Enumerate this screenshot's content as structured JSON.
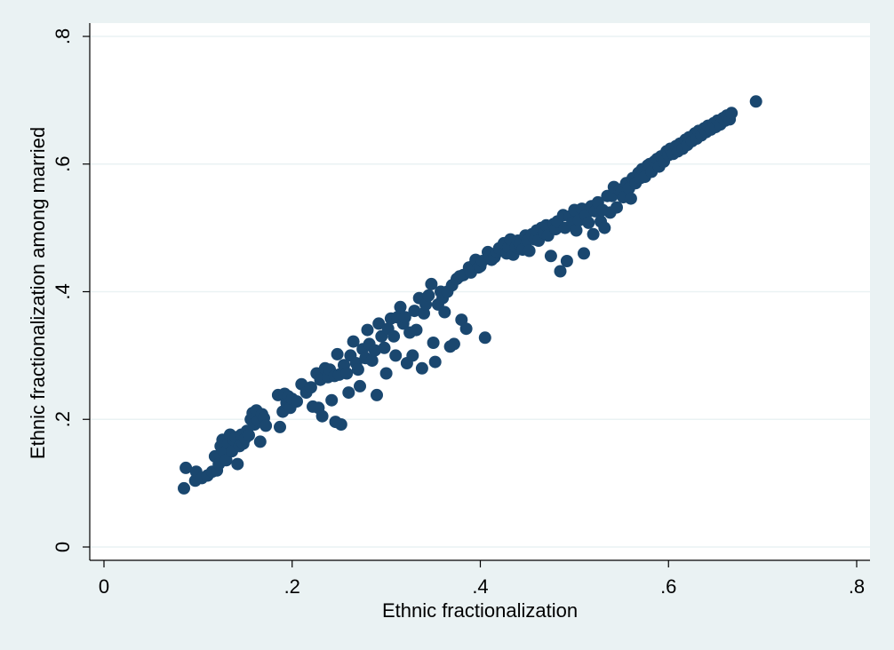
{
  "chart_data": {
    "type": "scatter",
    "title": "",
    "xlabel": "Ethnic fractionalization",
    "ylabel": "Ethnic fractionalization among married",
    "xlim": [
      0,
      0.8
    ],
    "ylim": [
      0,
      0.8
    ],
    "x_ticks": [
      0,
      0.2,
      0.4,
      0.6,
      0.8
    ],
    "x_tick_labels": [
      "0",
      ".2",
      ".4",
      ".6",
      ".8"
    ],
    "y_ticks": [
      0,
      0.2,
      0.4,
      0.6,
      0.8
    ],
    "y_tick_labels": [
      "0",
      ".2",
      ".4",
      ".6",
      ".8"
    ],
    "grid": "horizontal",
    "marker_color": "#1a476f",
    "plot_background": "#ffffff",
    "outer_background": "#eaf2f3",
    "points": [
      [
        0.085,
        0.092
      ],
      [
        0.087,
        0.124
      ],
      [
        0.097,
        0.104
      ],
      [
        0.098,
        0.118
      ],
      [
        0.104,
        0.108
      ],
      [
        0.11,
        0.112
      ],
      [
        0.115,
        0.118
      ],
      [
        0.118,
        0.142
      ],
      [
        0.12,
        0.12
      ],
      [
        0.122,
        0.13
      ],
      [
        0.124,
        0.158
      ],
      [
        0.126,
        0.168
      ],
      [
        0.128,
        0.148
      ],
      [
        0.13,
        0.136
      ],
      [
        0.132,
        0.162
      ],
      [
        0.134,
        0.176
      ],
      [
        0.136,
        0.15
      ],
      [
        0.138,
        0.168
      ],
      [
        0.14,
        0.172
      ],
      [
        0.142,
        0.13
      ],
      [
        0.144,
        0.158
      ],
      [
        0.146,
        0.176
      ],
      [
        0.148,
        0.162
      ],
      [
        0.15,
        0.17
      ],
      [
        0.152,
        0.182
      ],
      [
        0.154,
        0.175
      ],
      [
        0.156,
        0.2
      ],
      [
        0.158,
        0.21
      ],
      [
        0.16,
        0.192
      ],
      [
        0.162,
        0.214
      ],
      [
        0.164,
        0.198
      ],
      [
        0.166,
        0.165
      ],
      [
        0.168,
        0.208
      ],
      [
        0.17,
        0.202
      ],
      [
        0.172,
        0.19
      ],
      [
        0.185,
        0.238
      ],
      [
        0.187,
        0.188
      ],
      [
        0.19,
        0.212
      ],
      [
        0.192,
        0.24
      ],
      [
        0.194,
        0.226
      ],
      [
        0.196,
        0.236
      ],
      [
        0.198,
        0.218
      ],
      [
        0.2,
        0.232
      ],
      [
        0.205,
        0.228
      ],
      [
        0.21,
        0.255
      ],
      [
        0.215,
        0.242
      ],
      [
        0.22,
        0.25
      ],
      [
        0.222,
        0.22
      ],
      [
        0.226,
        0.272
      ],
      [
        0.228,
        0.218
      ],
      [
        0.23,
        0.262
      ],
      [
        0.232,
        0.205
      ],
      [
        0.235,
        0.28
      ],
      [
        0.238,
        0.266
      ],
      [
        0.24,
        0.278
      ],
      [
        0.242,
        0.23
      ],
      [
        0.245,
        0.268
      ],
      [
        0.248,
        0.302
      ],
      [
        0.25,
        0.27
      ],
      [
        0.252,
        0.192
      ],
      [
        0.246,
        0.196
      ],
      [
        0.255,
        0.285
      ],
      [
        0.258,
        0.272
      ],
      [
        0.26,
        0.242
      ],
      [
        0.262,
        0.3
      ],
      [
        0.265,
        0.322
      ],
      [
        0.268,
        0.288
      ],
      [
        0.27,
        0.278
      ],
      [
        0.272,
        0.252
      ],
      [
        0.275,
        0.31
      ],
      [
        0.278,
        0.296
      ],
      [
        0.28,
        0.34
      ],
      [
        0.282,
        0.318
      ],
      [
        0.285,
        0.292
      ],
      [
        0.288,
        0.308
      ],
      [
        0.29,
        0.238
      ],
      [
        0.292,
        0.35
      ],
      [
        0.295,
        0.33
      ],
      [
        0.298,
        0.312
      ],
      [
        0.3,
        0.272
      ],
      [
        0.302,
        0.342
      ],
      [
        0.305,
        0.358
      ],
      [
        0.308,
        0.33
      ],
      [
        0.31,
        0.3
      ],
      [
        0.312,
        0.36
      ],
      [
        0.315,
        0.376
      ],
      [
        0.318,
        0.35
      ],
      [
        0.32,
        0.36
      ],
      [
        0.322,
        0.288
      ],
      [
        0.325,
        0.336
      ],
      [
        0.328,
        0.3
      ],
      [
        0.33,
        0.37
      ],
      [
        0.332,
        0.34
      ],
      [
        0.335,
        0.39
      ],
      [
        0.338,
        0.28
      ],
      [
        0.34,
        0.366
      ],
      [
        0.342,
        0.38
      ],
      [
        0.345,
        0.394
      ],
      [
        0.348,
        0.412
      ],
      [
        0.35,
        0.32
      ],
      [
        0.352,
        0.29
      ],
      [
        0.355,
        0.38
      ],
      [
        0.358,
        0.4
      ],
      [
        0.36,
        0.39
      ],
      [
        0.362,
        0.368
      ],
      [
        0.365,
        0.4
      ],
      [
        0.368,
        0.314
      ],
      [
        0.37,
        0.41
      ],
      [
        0.372,
        0.318
      ],
      [
        0.375,
        0.42
      ],
      [
        0.378,
        0.424
      ],
      [
        0.38,
        0.356
      ],
      [
        0.382,
        0.426
      ],
      [
        0.385,
        0.342
      ],
      [
        0.388,
        0.438
      ],
      [
        0.39,
        0.43
      ],
      [
        0.392,
        0.44
      ],
      [
        0.395,
        0.45
      ],
      [
        0.398,
        0.438
      ],
      [
        0.4,
        0.44
      ],
      [
        0.402,
        0.448
      ],
      [
        0.405,
        0.328
      ],
      [
        0.408,
        0.462
      ],
      [
        0.41,
        0.456
      ],
      [
        0.412,
        0.45
      ],
      [
        0.415,
        0.454
      ],
      [
        0.418,
        0.462
      ],
      [
        0.42,
        0.468
      ],
      [
        0.425,
        0.476
      ],
      [
        0.428,
        0.46
      ],
      [
        0.43,
        0.47
      ],
      [
        0.432,
        0.482
      ],
      [
        0.435,
        0.458
      ],
      [
        0.438,
        0.47
      ],
      [
        0.44,
        0.48
      ],
      [
        0.442,
        0.474
      ],
      [
        0.445,
        0.466
      ],
      [
        0.448,
        0.488
      ],
      [
        0.45,
        0.48
      ],
      [
        0.452,
        0.464
      ],
      [
        0.455,
        0.49
      ],
      [
        0.458,
        0.482
      ],
      [
        0.46,
        0.496
      ],
      [
        0.462,
        0.48
      ],
      [
        0.465,
        0.5
      ],
      [
        0.468,
        0.492
      ],
      [
        0.47,
        0.504
      ],
      [
        0.472,
        0.488
      ],
      [
        0.475,
        0.456
      ],
      [
        0.478,
        0.506
      ],
      [
        0.48,
        0.498
      ],
      [
        0.482,
        0.51
      ],
      [
        0.485,
        0.432
      ],
      [
        0.488,
        0.52
      ],
      [
        0.49,
        0.5
      ],
      [
        0.492,
        0.448
      ],
      [
        0.495,
        0.518
      ],
      [
        0.498,
        0.508
      ],
      [
        0.5,
        0.528
      ],
      [
        0.502,
        0.496
      ],
      [
        0.505,
        0.512
      ],
      [
        0.508,
        0.53
      ],
      [
        0.51,
        0.46
      ],
      [
        0.512,
        0.52
      ],
      [
        0.515,
        0.508
      ],
      [
        0.518,
        0.534
      ],
      [
        0.52,
        0.49
      ],
      [
        0.522,
        0.526
      ],
      [
        0.525,
        0.54
      ],
      [
        0.528,
        0.51
      ],
      [
        0.53,
        0.528
      ],
      [
        0.532,
        0.5
      ],
      [
        0.535,
        0.55
      ],
      [
        0.538,
        0.524
      ],
      [
        0.54,
        0.55
      ],
      [
        0.542,
        0.564
      ],
      [
        0.545,
        0.532
      ],
      [
        0.548,
        0.56
      ],
      [
        0.55,
        0.556
      ],
      [
        0.552,
        0.548
      ],
      [
        0.555,
        0.57
      ],
      [
        0.558,
        0.562
      ],
      [
        0.56,
        0.546
      ],
      [
        0.562,
        0.578
      ],
      [
        0.565,
        0.57
      ],
      [
        0.568,
        0.586
      ],
      [
        0.57,
        0.578
      ],
      [
        0.572,
        0.592
      ],
      [
        0.575,
        0.58
      ],
      [
        0.578,
        0.598
      ],
      [
        0.58,
        0.6
      ],
      [
        0.582,
        0.588
      ],
      [
        0.585,
        0.604
      ],
      [
        0.588,
        0.608
      ],
      [
        0.59,
        0.596
      ],
      [
        0.592,
        0.612
      ],
      [
        0.595,
        0.604
      ],
      [
        0.598,
        0.62
      ],
      [
        0.6,
        0.614
      ],
      [
        0.602,
        0.624
      ],
      [
        0.605,
        0.616
      ],
      [
        0.608,
        0.628
      ],
      [
        0.61,
        0.62
      ],
      [
        0.612,
        0.632
      ],
      [
        0.615,
        0.624
      ],
      [
        0.618,
        0.638
      ],
      [
        0.62,
        0.63
      ],
      [
        0.622,
        0.642
      ],
      [
        0.625,
        0.636
      ],
      [
        0.628,
        0.648
      ],
      [
        0.63,
        0.64
      ],
      [
        0.632,
        0.652
      ],
      [
        0.635,
        0.645
      ],
      [
        0.638,
        0.656
      ],
      [
        0.64,
        0.65
      ],
      [
        0.642,
        0.66
      ],
      [
        0.645,
        0.654
      ],
      [
        0.648,
        0.664
      ],
      [
        0.65,
        0.658
      ],
      [
        0.652,
        0.668
      ],
      [
        0.655,
        0.662
      ],
      [
        0.658,
        0.672
      ],
      [
        0.66,
        0.668
      ],
      [
        0.662,
        0.676
      ],
      [
        0.665,
        0.67
      ],
      [
        0.667,
        0.68
      ],
      [
        0.693,
        0.698
      ]
    ]
  }
}
